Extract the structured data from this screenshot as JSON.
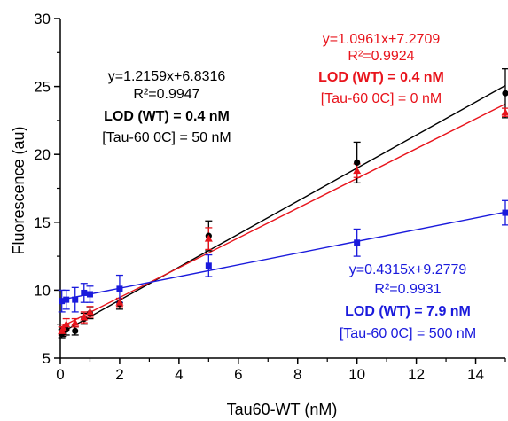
{
  "chart_data": {
    "type": "scatter",
    "xlabel": "Tau60-WT (nM)",
    "ylabel": "Fluorescence (au)",
    "xlim": [
      0,
      15
    ],
    "ylim": [
      5,
      30
    ],
    "x_ticks": [
      0,
      2,
      4,
      6,
      8,
      10,
      12,
      14
    ],
    "y_ticks": [
      5,
      10,
      15,
      20,
      25,
      30
    ],
    "x_tick_labels": [
      "0",
      "2",
      "4",
      "6",
      "8",
      "10",
      "12",
      "14"
    ],
    "y_tick_labels": [
      "5",
      "10",
      "15",
      "20",
      "25",
      "30"
    ],
    "grid": false,
    "series": [
      {
        "color": "#000000",
        "marker": "circle",
        "fit": {
          "slope": 1.2159,
          "intercept": 6.8316
        },
        "points": [
          {
            "x": 0.05,
            "y": 6.8,
            "err": 0.3
          },
          {
            "x": 0.1,
            "y": 6.9,
            "err": 0.3
          },
          {
            "x": 0.2,
            "y": 7.1,
            "err": 0.4
          },
          {
            "x": 0.5,
            "y": 7.0,
            "err": 0.3
          },
          {
            "x": 0.8,
            "y": 7.9,
            "err": 0.4
          },
          {
            "x": 1.0,
            "y": 8.3,
            "err": 0.4
          },
          {
            "x": 2.0,
            "y": 9.0,
            "err": 0.4
          },
          {
            "x": 5.0,
            "y": 14.0,
            "err": 1.1
          },
          {
            "x": 10.0,
            "y": 19.4,
            "err": 1.5
          },
          {
            "x": 15.0,
            "y": 24.5,
            "err": 1.8
          }
        ],
        "annotation": {
          "equation": "y=1.2159x+6.8316",
          "r2": "R²=0.9947",
          "lod": "LOD (WT) = 0.4 nM",
          "condition": "[Tau-60 0C] = 50 nM"
        }
      },
      {
        "color": "#e8141c",
        "marker": "triangle",
        "fit": {
          "slope": 1.0961,
          "intercept": 7.2709
        },
        "points": [
          {
            "x": 0.05,
            "y": 7.0,
            "err": 0.3
          },
          {
            "x": 0.1,
            "y": 7.2,
            "err": 0.3
          },
          {
            "x": 0.2,
            "y": 7.5,
            "err": 0.4
          },
          {
            "x": 0.5,
            "y": 7.6,
            "err": 0.3
          },
          {
            "x": 0.8,
            "y": 8.0,
            "err": 0.4
          },
          {
            "x": 1.0,
            "y": 8.4,
            "err": 0.4
          },
          {
            "x": 2.0,
            "y": 9.1,
            "err": 0.3
          },
          {
            "x": 5.0,
            "y": 13.8,
            "err": 0.8
          },
          {
            "x": 10.0,
            "y": 18.8,
            "err": 0.5
          },
          {
            "x": 15.0,
            "y": 23.1,
            "err": 0.3
          }
        ],
        "annotation": {
          "equation": "y=1.0961x+7.2709",
          "r2": "R²=0.9924",
          "lod": "LOD (WT) = 0.4 nM",
          "condition": "[Tau-60 0C] = 0 nM"
        }
      },
      {
        "color": "#1a1adc",
        "marker": "square",
        "fit": {
          "slope": 0.4315,
          "intercept": 9.2779
        },
        "points": [
          {
            "x": 0.05,
            "y": 9.2,
            "err": 0.8
          },
          {
            "x": 0.2,
            "y": 9.3,
            "err": 0.7
          },
          {
            "x": 0.5,
            "y": 9.3,
            "err": 0.9
          },
          {
            "x": 0.8,
            "y": 9.8,
            "err": 0.7
          },
          {
            "x": 1.0,
            "y": 9.7,
            "err": 0.6
          },
          {
            "x": 2.0,
            "y": 10.1,
            "err": 1.0
          },
          {
            "x": 5.0,
            "y": 11.8,
            "err": 0.8
          },
          {
            "x": 10.0,
            "y": 13.5,
            "err": 1.0
          },
          {
            "x": 15.0,
            "y": 15.7,
            "err": 0.9
          }
        ],
        "annotation": {
          "equation": "y=0.4315x+9.2779",
          "r2": "R²=0.9931",
          "lod": "LOD (WT) = 7.9 nM",
          "condition": "[Tau-60 0C] = 500 nM"
        }
      }
    ]
  }
}
